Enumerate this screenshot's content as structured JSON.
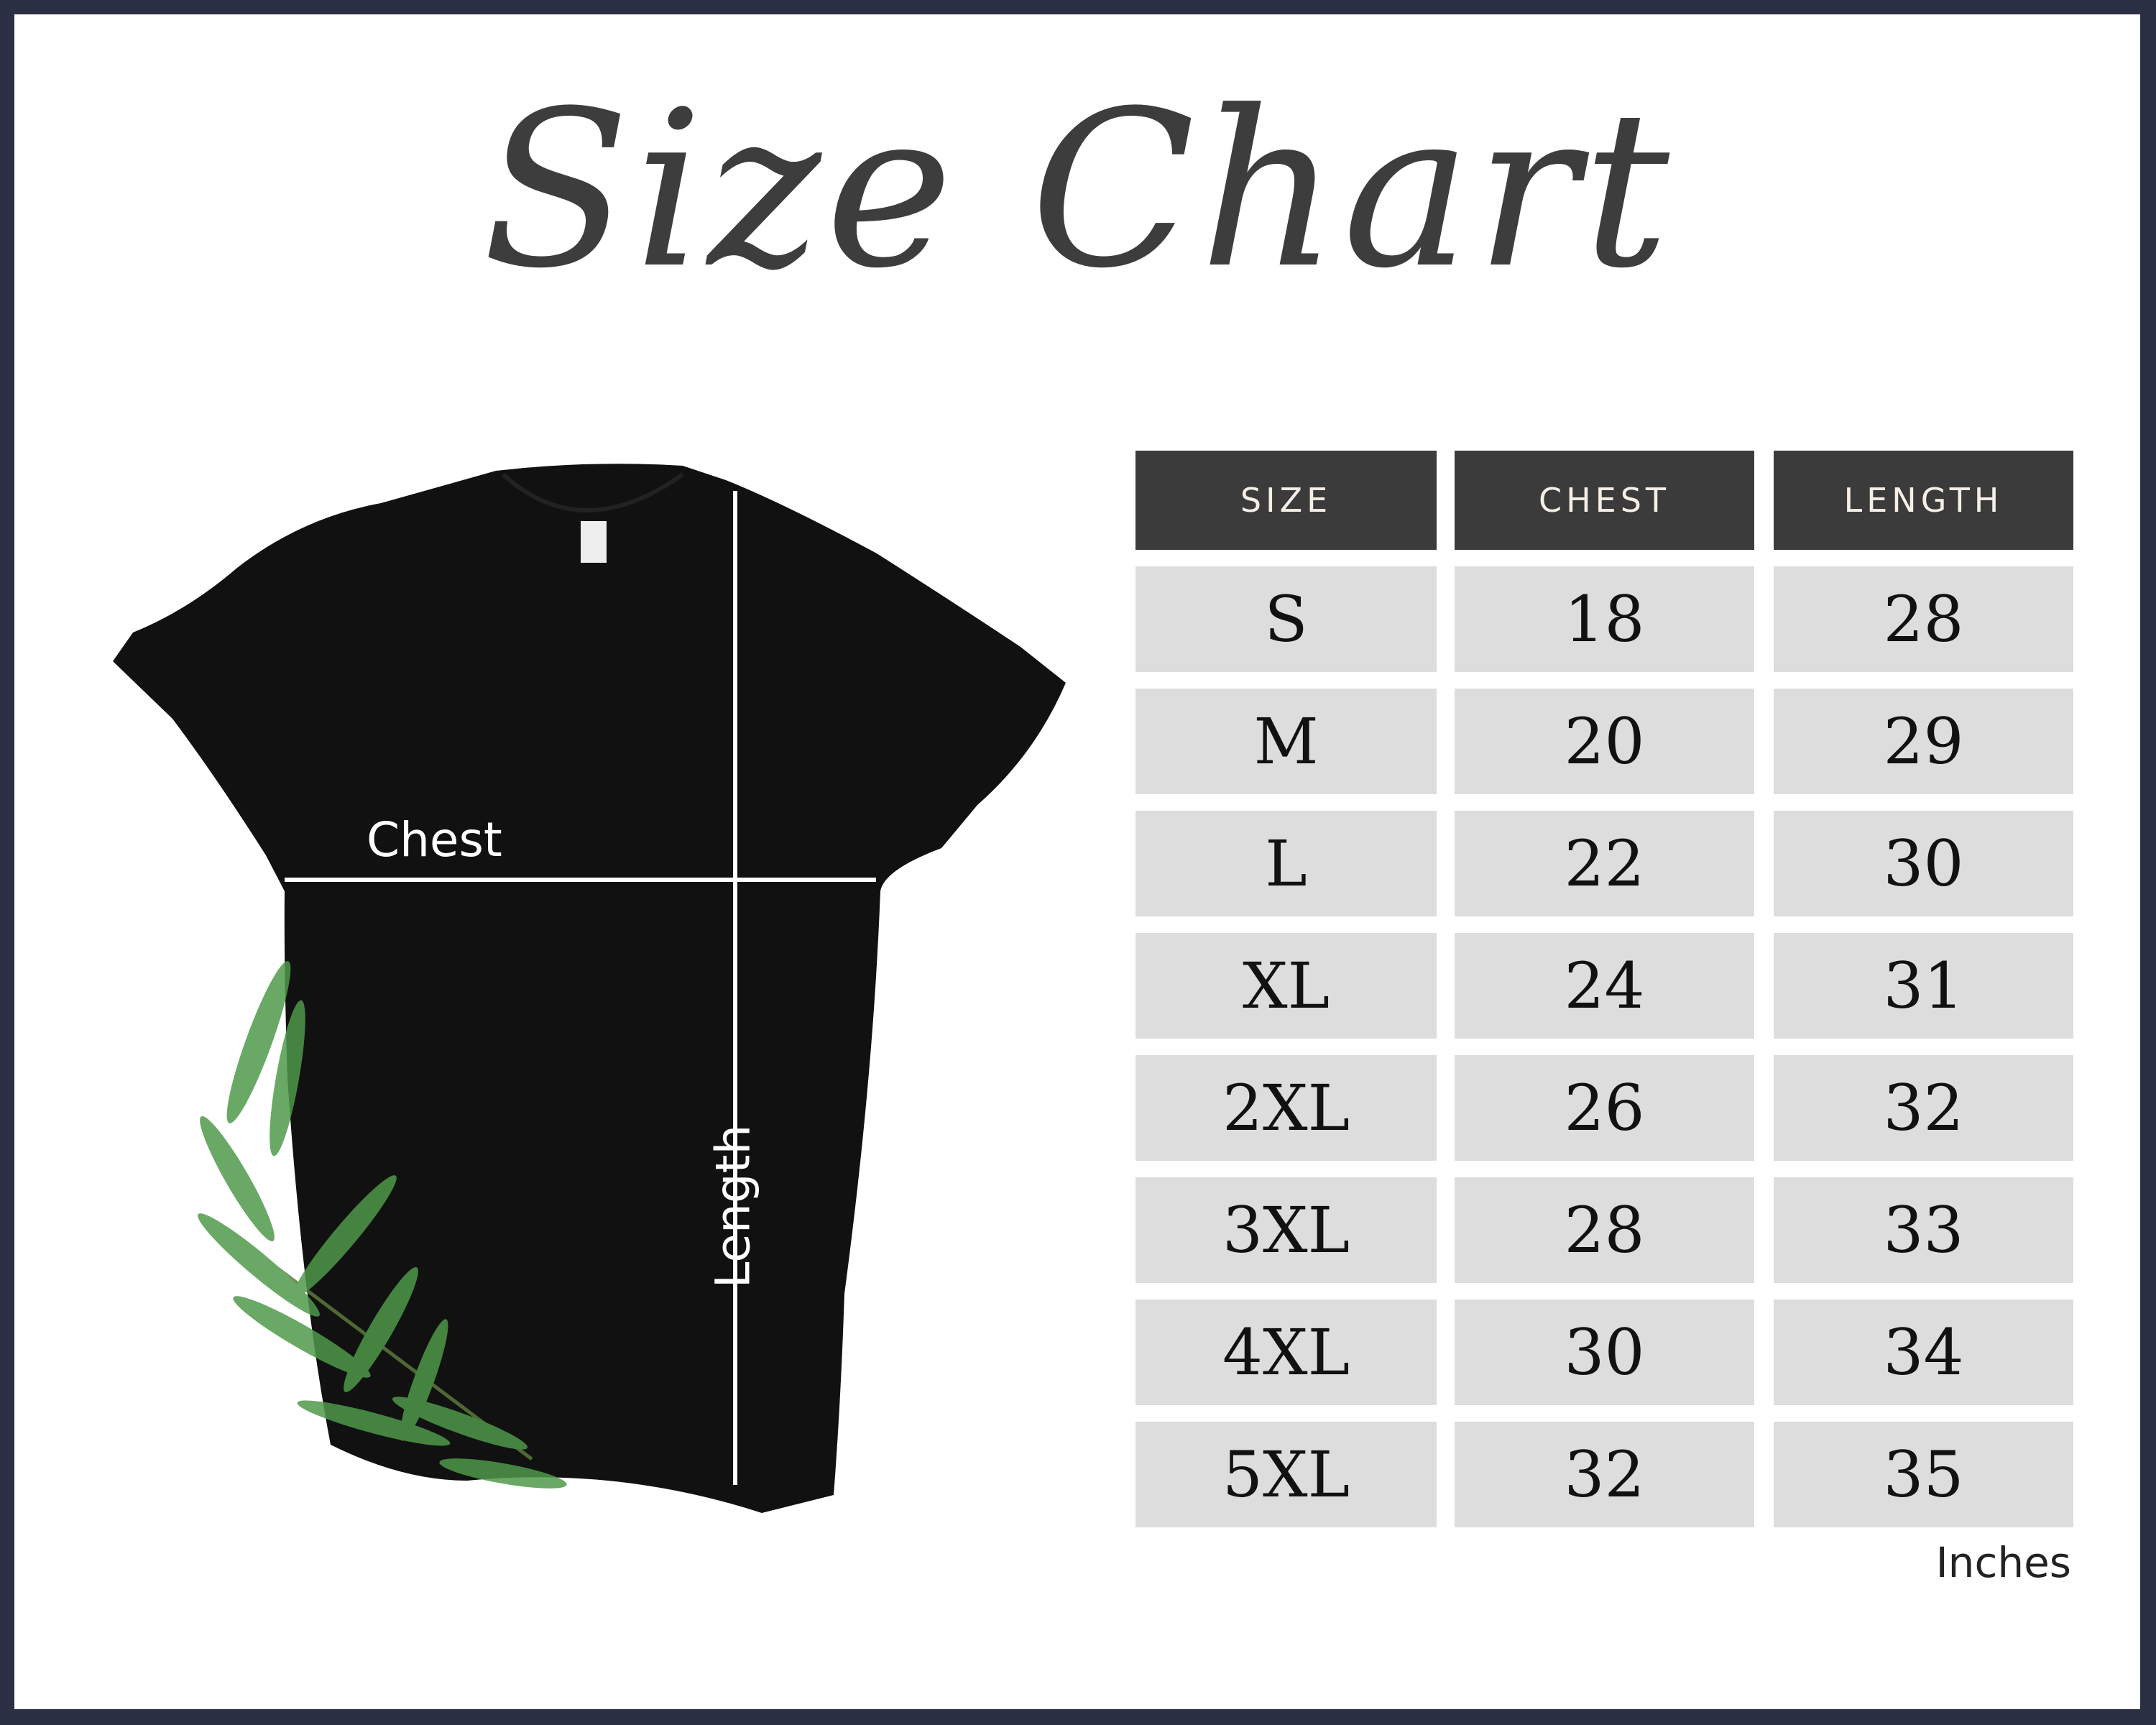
{
  "title": "Size Chart",
  "diagram": {
    "chest_label": "Chest",
    "length_label": "Length"
  },
  "colors": {
    "frame": "#2b2f44",
    "header_bg": "#3b3b3b",
    "cell_bg": "#dddddd",
    "shirt": "#111111",
    "leaf": "#4e9a4a"
  },
  "table": {
    "headers": [
      "SIZE",
      "CHEST",
      "LENGTH"
    ],
    "rows": [
      [
        "S",
        "18",
        "28"
      ],
      [
        "M",
        "20",
        "29"
      ],
      [
        "L",
        "22",
        "30"
      ],
      [
        "XL",
        "24",
        "31"
      ],
      [
        "2XL",
        "26",
        "32"
      ],
      [
        "3XL",
        "28",
        "33"
      ],
      [
        "4XL",
        "30",
        "34"
      ],
      [
        "5XL",
        "32",
        "35"
      ]
    ],
    "unit": "Inches"
  }
}
